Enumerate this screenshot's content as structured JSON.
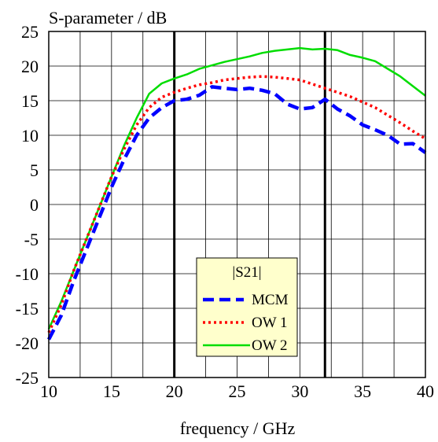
{
  "chart_data": {
    "type": "line",
    "title": "",
    "xlabel": "frequency / GHz",
    "ylabel": "S-parameter / dB",
    "xlim": [
      10,
      40
    ],
    "ylim": [
      -25,
      25
    ],
    "x_ticks": [
      10,
      15,
      20,
      25,
      30,
      35,
      40
    ],
    "y_ticks": [
      25,
      20,
      15,
      10,
      5,
      0,
      -5,
      -10,
      -15,
      -20,
      -25
    ],
    "grid": true,
    "vertical_markers": [
      20,
      32
    ],
    "legend": {
      "title": "|S21|",
      "placement": "bottom-center",
      "entries": [
        "MCM",
        "OW 1",
        "OW 2"
      ]
    },
    "series": [
      {
        "name": "MCM",
        "style": "dashed",
        "color": "#0000ff",
        "x": [
          10,
          11,
          12,
          13,
          14,
          15,
          16,
          17,
          18,
          19,
          20,
          21,
          22,
          23,
          24,
          25,
          26,
          27,
          28,
          29,
          30,
          31,
          32,
          33,
          34,
          35,
          36,
          37,
          38,
          39,
          40
        ],
        "y": [
          -19.5,
          -16,
          -11,
          -6.5,
          -2,
          2.5,
          6.5,
          10,
          12.5,
          14,
          15,
          15.2,
          15.8,
          17,
          16.8,
          16.6,
          16.8,
          16.5,
          16,
          14.5,
          13.8,
          14,
          15.2,
          13.8,
          12.8,
          11.5,
          10.8,
          10,
          8.7,
          8.8,
          7.5
        ]
      },
      {
        "name": "OW 1",
        "style": "dotted",
        "color": "#ff0000",
        "x": [
          10,
          11,
          12,
          13,
          14,
          15,
          16,
          17,
          18,
          19,
          20,
          21,
          22,
          23,
          24,
          25,
          26,
          27,
          28,
          29,
          30,
          31,
          32,
          33,
          34,
          35,
          36,
          37,
          38,
          39,
          40
        ],
        "y": [
          -18.5,
          -14.5,
          -9.5,
          -5,
          -0.5,
          4,
          8,
          11.5,
          14,
          15.5,
          16.2,
          16.8,
          17.3,
          17.6,
          18,
          18.2,
          18.4,
          18.5,
          18.4,
          18.2,
          18,
          17.4,
          16.8,
          16.2,
          15.6,
          14.8,
          14,
          12.9,
          11.8,
          10.6,
          9.5
        ]
      },
      {
        "name": "OW 2",
        "style": "solid",
        "color": "#00dd00",
        "x": [
          10,
          11,
          12,
          13,
          14,
          15,
          16,
          17,
          18,
          19,
          20,
          21,
          22,
          23,
          24,
          25,
          26,
          27,
          28,
          29,
          30,
          31,
          32,
          33,
          34,
          35,
          36,
          37,
          38,
          39,
          40
        ],
        "y": [
          -18,
          -14,
          -9.5,
          -5,
          -0.5,
          4,
          8.5,
          12.5,
          16,
          17.5,
          18.2,
          18.8,
          19.6,
          20.1,
          20.6,
          21,
          21.4,
          21.9,
          22.2,
          22.4,
          22.6,
          22.4,
          22.5,
          22.3,
          21.6,
          21.2,
          20.7,
          19.6,
          18.5,
          17.1,
          15.7
        ]
      }
    ]
  }
}
